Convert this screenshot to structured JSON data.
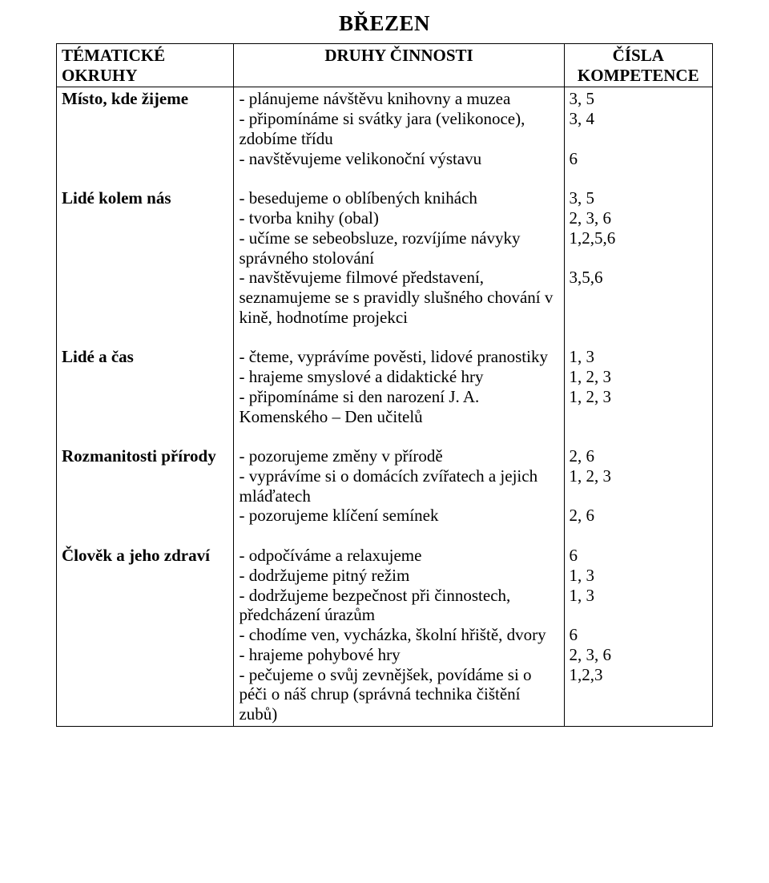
{
  "title": "BŘEZEN",
  "headers": {
    "col1": "TÉMATICKÉ OKRUHY",
    "col2": "DRUHY ČINNOSTI",
    "col3_line1": "ČÍSLA",
    "col3_line2": "KOMPETENCE"
  },
  "sections": [
    {
      "topic": "Místo, kde žijeme",
      "items": [
        {
          "text": "- plánujeme návštěvu knihovny a muzea",
          "code": "3, 5"
        },
        {
          "text": "- připomínáme si svátky jara (velikonoce), zdobíme třídu",
          "code": "3, 4"
        },
        {
          "text": "- navštěvujeme velikonoční výstavu",
          "code": "6"
        }
      ]
    },
    {
      "topic": "Lidé kolem nás",
      "items": [
        {
          "text": "- besedujeme o oblíbených knihách",
          "code": "3, 5"
        },
        {
          "text": "- tvorba knihy (obal)",
          "code": "2, 3, 6"
        },
        {
          "text": "- učíme se sebeobsluze, rozvíjíme návyky správného stolování",
          "code": "1,2,5,6"
        },
        {
          "text": "- navštěvujeme filmové představení, seznamujeme se s pravidly slušného chování v kině, hodnotíme projekci",
          "code": "3,5,6"
        }
      ]
    },
    {
      "topic": "Lidé a čas",
      "items": [
        {
          "text": "- čteme, vyprávíme pověsti, lidové pranostiky",
          "code": "1, 3"
        },
        {
          "text": "- hrajeme smyslové a didaktické hry",
          "code": "1, 2, 3"
        },
        {
          "text": "- připomínáme si den narození J. A. Komenského – Den učitelů",
          "code": "1, 2, 3"
        }
      ]
    },
    {
      "topic": "Rozmanitosti přírody",
      "items": [
        {
          "text": "- pozorujeme změny v přírodě",
          "code": "2, 6"
        },
        {
          "text": "- vyprávíme si o domácích zvířatech a jejich mláďatech",
          "code": "1, 2, 3"
        },
        {
          "text": "- pozorujeme klíčení semínek",
          "code": "2, 6"
        }
      ]
    },
    {
      "topic": "Člověk a jeho zdraví",
      "items": [
        {
          "text": "- odpočíváme a relaxujeme",
          "code": "6"
        },
        {
          "text": "- dodržujeme pitný režim",
          "code": "1, 3"
        },
        {
          "text": "- dodržujeme bezpečnost při činnostech, předcházení úrazům",
          "code": "1, 3"
        },
        {
          "text": "- chodíme ven, vycházka, školní hřiště, dvory",
          "code": "6"
        },
        {
          "text": "- hrajeme pohybové hry",
          "code": "2, 3, 6"
        },
        {
          "text": "- pečujeme o svůj zevnějšek, povídáme si o péči o náš chrup (správná technika čištění zubů)",
          "code": "1,2,3"
        }
      ]
    }
  ]
}
